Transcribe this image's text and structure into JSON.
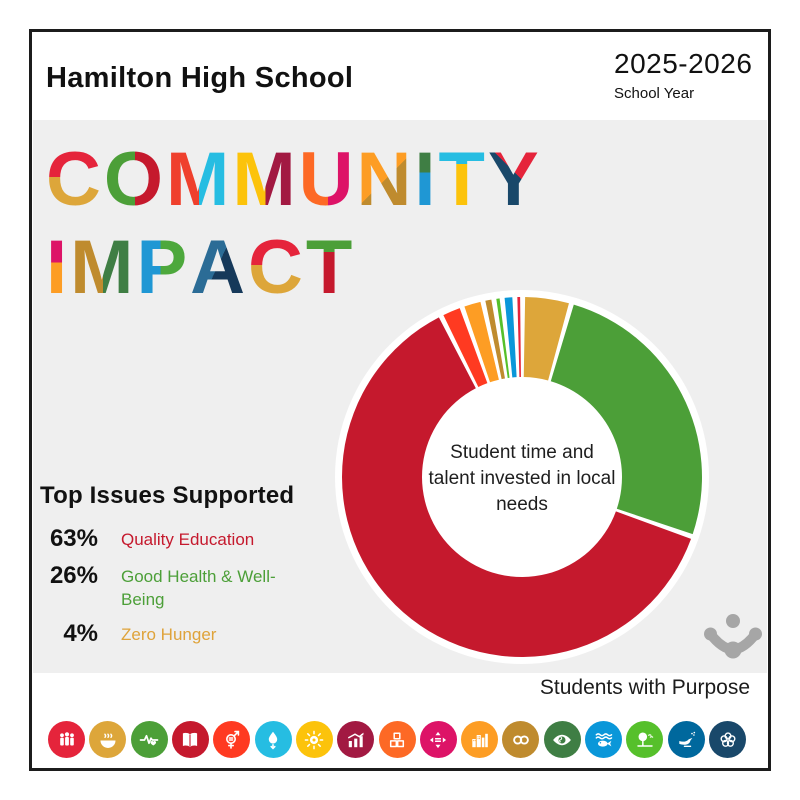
{
  "header": {
    "school_name": "Hamilton High School",
    "year": "2025-2026",
    "year_caption": "School Year"
  },
  "title": {
    "line1": "COMMUNITY",
    "line2": "IMPACT",
    "letters_line1": [
      {
        "ch": "C",
        "c1": "#E5243B",
        "c2": "#DDA63A",
        "dir": "180deg",
        "split": 47
      },
      {
        "ch": "O",
        "c1": "#4C9F38",
        "c2": "#C5192D",
        "dir": "90deg",
        "split": 50
      },
      {
        "ch": "M",
        "c1": "#EF402D",
        "c2": "#26BDE2",
        "dir": "90deg",
        "split": 50
      },
      {
        "ch": "M",
        "c1": "#FCC30B",
        "c2": "#A21942",
        "dir": "90deg",
        "split": 50
      },
      {
        "ch": "U",
        "c1": "#FD6925",
        "c2": "#DD1367",
        "dir": "90deg",
        "split": 50
      },
      {
        "ch": "N",
        "c1": "#FD9D24",
        "c2": "#BF8B2E",
        "dir": "135deg",
        "split": 50
      },
      {
        "ch": "I",
        "c1": "#3F7E44",
        "c2": "#1F97D4",
        "dir": "180deg",
        "split": 42
      },
      {
        "ch": "T",
        "c1": "#26BDE2",
        "c2": "#FCC30B",
        "dir": "180deg",
        "split": 32
      },
      {
        "ch": "Y",
        "c1": "#E5243B",
        "c2": "#19486A",
        "dir": "225deg",
        "split": 45
      }
    ],
    "letters_line2": [
      {
        "ch": "I",
        "c1": "#DD1367",
        "c2": "#FD9D24",
        "dir": "180deg",
        "split": 44
      },
      {
        "ch": "M",
        "c1": "#BF8B2E",
        "c2": "#3F7E44",
        "dir": "90deg",
        "split": 50
      },
      {
        "ch": "P",
        "c1": "#1F97D4",
        "c2": "#4DA83C",
        "dir": "90deg",
        "split": 45
      },
      {
        "ch": "A",
        "c1": "#2B6C96",
        "c2": "#16395A",
        "dir": "115deg",
        "split": 48
      },
      {
        "ch": "C",
        "c1": "#E5243B",
        "c2": "#DDA63A",
        "dir": "180deg",
        "split": 47
      },
      {
        "ch": "T",
        "c1": "#4C9F38",
        "c2": "#C5192D",
        "dir": "180deg",
        "split": 32
      }
    ]
  },
  "chart_data": {
    "type": "pie",
    "variant": "donut",
    "center_label": "Student time and talent invested in local needs",
    "start_angle_deg": 1,
    "gap_deg": 1.6,
    "outer_radius": 180,
    "inner_radius": 100,
    "slices": [
      {
        "label": "Zero Hunger",
        "value": 4,
        "color": "#DDA63A"
      },
      {
        "label": "Good Health & Well-Being",
        "value": 26,
        "color": "#4C9F38"
      },
      {
        "label": "Quality Education",
        "value": 63,
        "color": "#C5192D"
      },
      {
        "label": "",
        "value": 1.6,
        "color": "#FF3A21"
      },
      {
        "label": "",
        "value": 1.5,
        "color": "#FD9D24"
      },
      {
        "label": "",
        "value": 0.55,
        "color": "#BF8B2E"
      },
      {
        "label": "",
        "value": 0.3,
        "color": "#56C02B"
      },
      {
        "label": "",
        "value": 0.7,
        "color": "#0A97D9"
      },
      {
        "label": "",
        "value": 0.25,
        "color": "#E5243B"
      }
    ]
  },
  "top_issues": {
    "title": "Top Issues Supported",
    "items": [
      {
        "pct": "63%",
        "label": "Quality Education",
        "color": "#C5192D"
      },
      {
        "pct": "26%",
        "label": "Good Health & Well-Being",
        "color": "#4C9F38"
      },
      {
        "pct": "4%",
        "label": "Zero Hunger",
        "color": "#DFA33A"
      }
    ]
  },
  "footer": {
    "brand": "Students with Purpose"
  },
  "logo": {
    "name": "students-with-purpose-logo",
    "color": "#A6A6A6"
  },
  "sdg_icons": [
    {
      "name": "no-poverty-icon",
      "color": "#E5243B"
    },
    {
      "name": "zero-hunger-icon",
      "color": "#DDA63A"
    },
    {
      "name": "good-health-icon",
      "color": "#4C9F38"
    },
    {
      "name": "quality-education-icon",
      "color": "#C5192D"
    },
    {
      "name": "gender-equality-icon",
      "color": "#FF3A21"
    },
    {
      "name": "clean-water-icon",
      "color": "#26BDE2"
    },
    {
      "name": "clean-energy-icon",
      "color": "#FCC30B"
    },
    {
      "name": "decent-work-icon",
      "color": "#A21942"
    },
    {
      "name": "industry-innovation-icon",
      "color": "#FD6925"
    },
    {
      "name": "reduced-inequalities-icon",
      "color": "#DD1367"
    },
    {
      "name": "sustainable-cities-icon",
      "color": "#FD9D24"
    },
    {
      "name": "responsible-consumption-icon",
      "color": "#BF8B2E"
    },
    {
      "name": "climate-action-icon",
      "color": "#3F7E44"
    },
    {
      "name": "life-below-water-icon",
      "color": "#0A97D9"
    },
    {
      "name": "life-on-land-icon",
      "color": "#56C02B"
    },
    {
      "name": "peace-justice-icon",
      "color": "#00689D"
    },
    {
      "name": "partnerships-icon",
      "color": "#19486A"
    }
  ]
}
